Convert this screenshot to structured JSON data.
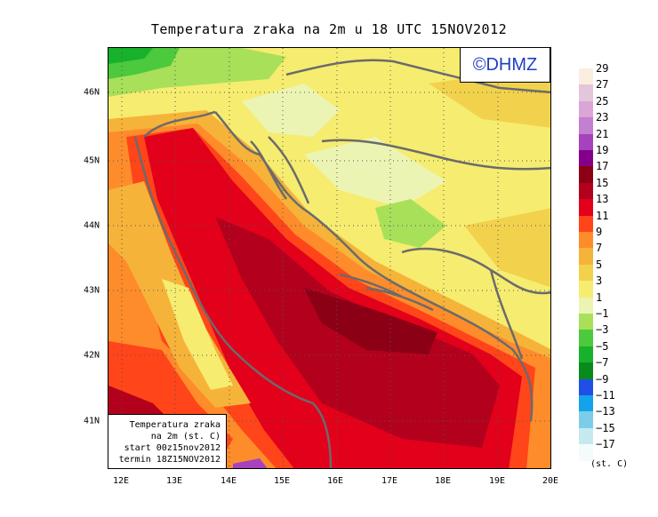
{
  "title": "Temperatura zraka na 2m u 18 UTC 15NOV2012",
  "logo": "©DHMZ",
  "info_box": {
    "line1": "Temperatura zraka",
    "line2": "na 2m (st. C)",
    "line3": "start 00z15nov2012",
    "line4": "termin 18Z15NOV2012"
  },
  "axes": {
    "x_ticks": [
      "12E",
      "13E",
      "14E",
      "15E",
      "16E",
      "17E",
      "18E",
      "19E",
      "20E"
    ],
    "y_ticks": [
      "46N",
      "45N",
      "44N",
      "43N",
      "42N",
      "41N"
    ],
    "lon_range": [
      11.75,
      20.0
    ],
    "lat_range": [
      40.25,
      46.65
    ],
    "grid": "dotted"
  },
  "legend": {
    "unit": "(st. C)",
    "labels": [
      "29",
      "27",
      "25",
      "23",
      "21",
      "19",
      "17",
      "15",
      "13",
      "11",
      "9",
      "7",
      "5",
      "3",
      "1",
      "−1",
      "−3",
      "−5",
      "−7",
      "−9",
      "−11",
      "−13",
      "−15",
      "−17"
    ],
    "colors": [
      "#fbeede",
      "#e3c6dc",
      "#d9a6d6",
      "#c37fd0",
      "#a642be",
      "#85008a",
      "#8c0016",
      "#b3001c",
      "#e2001b",
      "#ff4519",
      "#ff8c2b",
      "#f6b339",
      "#f2d24c",
      "#f6ec70",
      "#ecf4b4",
      "#a8e05a",
      "#4cc93c",
      "#17b12c",
      "#098b1c",
      "#1f4fe7",
      "#14a3eb",
      "#7ecde8",
      "#c4eaef",
      "#f3fbfc"
    ]
  },
  "map": {
    "region": "Adriatic Sea and western Balkans",
    "variable": "2 m air temperature"
  }
}
